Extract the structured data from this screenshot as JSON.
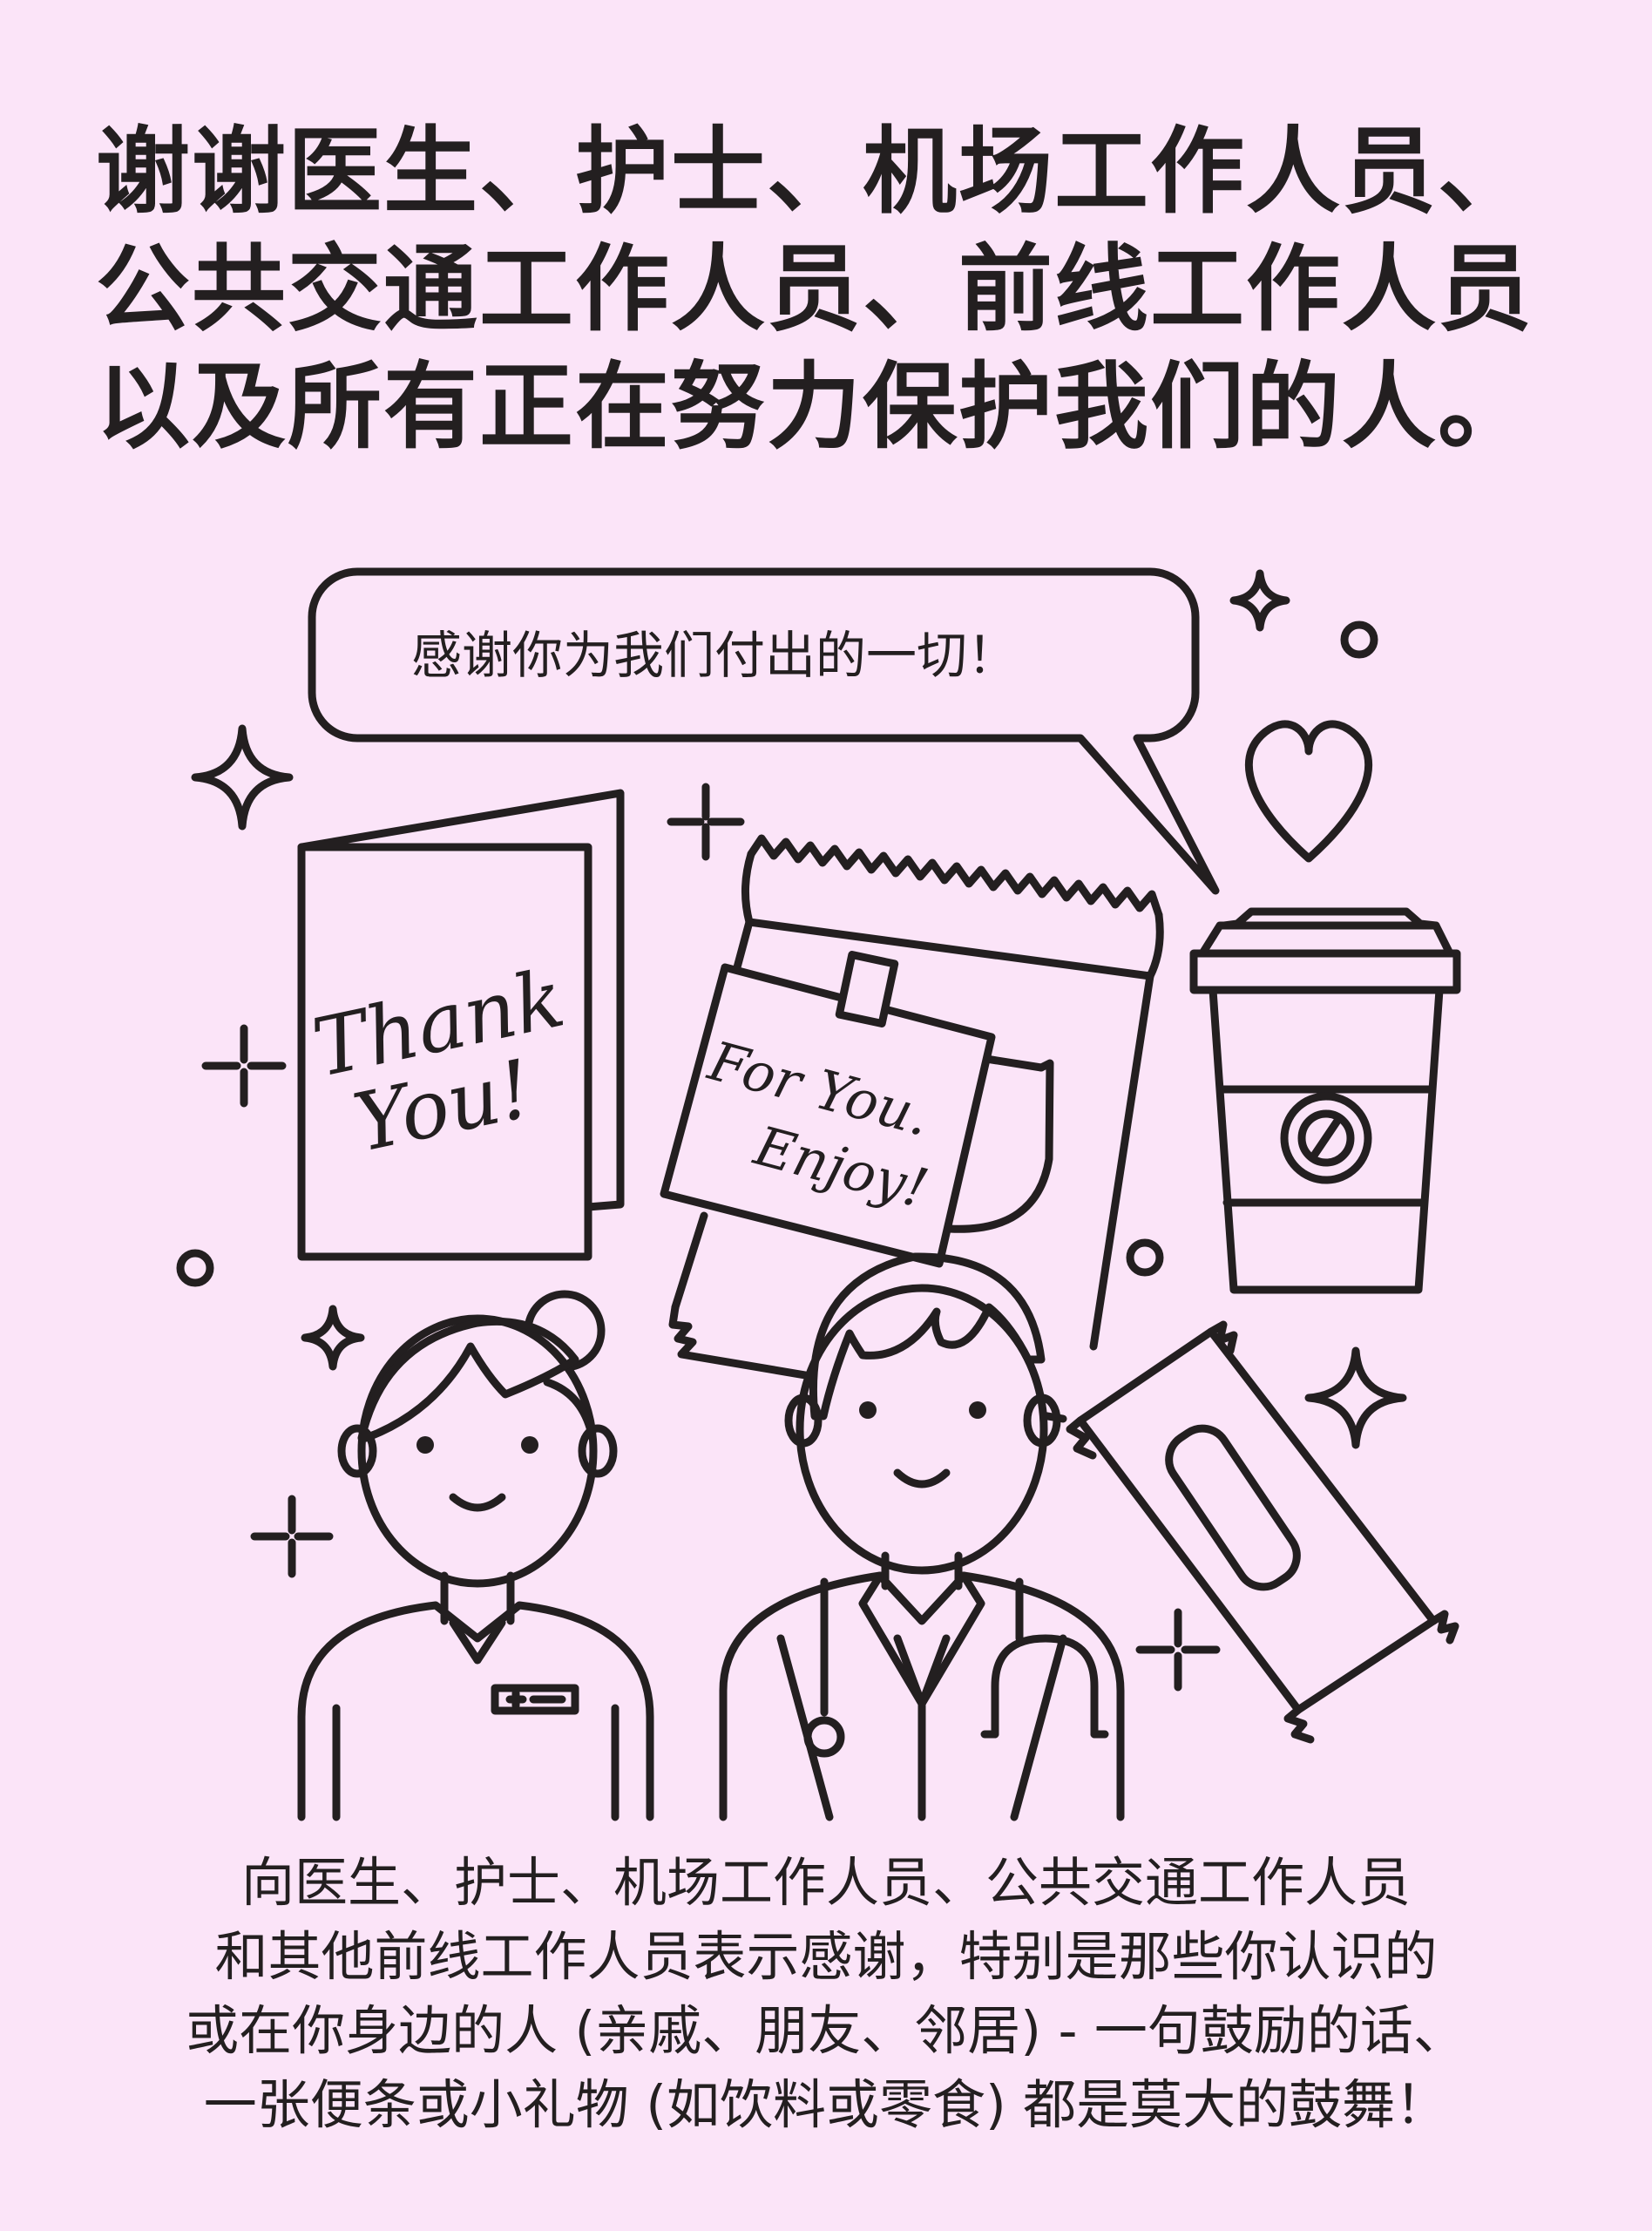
{
  "headline": {
    "line1": "谢谢医生、护士、机场工作人员、",
    "line2": "公共交通工作人员、前线工作人员",
    "line3": "以及所有正在努力保护我们的人。"
  },
  "speech_bubble": "感谢你为我们付出的一切！",
  "card_text": {
    "line1": "Thank",
    "line2": "You!"
  },
  "note_text": {
    "line1": "For You.",
    "line2": "Enjoy!"
  },
  "body": {
    "line1": "向医生、护士、机场工作人员、公共交通工作人员",
    "line2": "和其他前线工作人员表示感谢，特别是那些你认识的",
    "line3": "或在你身边的人 (亲戚、朋友、邻居) - 一句鼓励的话、",
    "line4": "一张便条或小礼物 (如饮料或零食) 都是莫大的鼓舞！"
  },
  "icons": [
    "sparkle-icon",
    "circle-dot-icon",
    "heart-icon",
    "thank-you-card-icon",
    "snack-bag-icon",
    "note-card-icon",
    "coffee-cup-icon",
    "snack-bar-icon",
    "nurse-icon",
    "doctor-icon",
    "stethoscope-icon"
  ],
  "colors": {
    "background": "#fbe4f8",
    "ink": "#231f20"
  }
}
